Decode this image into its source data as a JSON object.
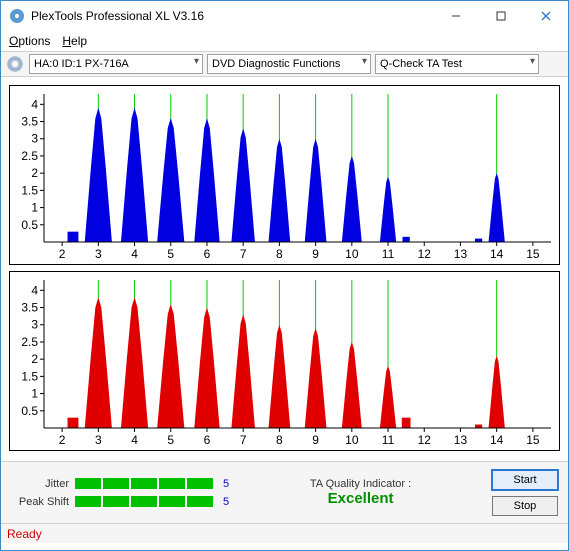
{
  "window": {
    "title": "PlexTools Professional XL V3.16"
  },
  "menu": {
    "options": "Options",
    "help": "Help"
  },
  "toolbar": {
    "drive": "HA:0 ID:1   PX-716A",
    "category": "DVD Diagnostic Functions",
    "test": "Q-Check TA Test"
  },
  "chart": {
    "x_ticks": [
      2,
      3,
      4,
      5,
      6,
      7,
      8,
      9,
      10,
      11,
      12,
      13,
      14,
      15
    ],
    "y_ticks": [
      0.5,
      1,
      1.5,
      2,
      2.5,
      3,
      3.5,
      4
    ],
    "x_min": 1.5,
    "x_max": 15.5,
    "y_min": 0,
    "y_max": 4.3,
    "grid_x": [
      3,
      4,
      5,
      6,
      7,
      8,
      9,
      10,
      11,
      14
    ],
    "grid_color": "#00d000",
    "top": {
      "fill": "#0000e0",
      "peaks": [
        {
          "c": 3,
          "h": 3.9,
          "w": 0.75
        },
        {
          "c": 4,
          "h": 3.9,
          "w": 0.75
        },
        {
          "c": 5,
          "h": 3.6,
          "w": 0.75
        },
        {
          "c": 6,
          "h": 3.6,
          "w": 0.7
        },
        {
          "c": 7,
          "h": 3.3,
          "w": 0.65
        },
        {
          "c": 8,
          "h": 3.0,
          "w": 0.6
        },
        {
          "c": 9,
          "h": 3.0,
          "w": 0.6
        },
        {
          "c": 10,
          "h": 2.5,
          "w": 0.55
        },
        {
          "c": 11,
          "h": 1.9,
          "w": 0.45
        },
        {
          "c": 14,
          "h": 2.0,
          "w": 0.45
        }
      ],
      "stubs": [
        {
          "c": 2.3,
          "h": 0.3,
          "w": 0.15
        },
        {
          "c": 11.5,
          "h": 0.15,
          "w": 0.1
        },
        {
          "c": 13.5,
          "h": 0.1,
          "w": 0.1
        }
      ]
    },
    "bottom": {
      "fill": "#e00000",
      "peaks": [
        {
          "c": 3,
          "h": 3.8,
          "w": 0.75
        },
        {
          "c": 4,
          "h": 3.8,
          "w": 0.75
        },
        {
          "c": 5,
          "h": 3.6,
          "w": 0.75
        },
        {
          "c": 6,
          "h": 3.5,
          "w": 0.7
        },
        {
          "c": 7,
          "h": 3.3,
          "w": 0.65
        },
        {
          "c": 8,
          "h": 3.0,
          "w": 0.6
        },
        {
          "c": 9,
          "h": 2.9,
          "w": 0.6
        },
        {
          "c": 10,
          "h": 2.5,
          "w": 0.55
        },
        {
          "c": 11,
          "h": 1.8,
          "w": 0.45
        },
        {
          "c": 14,
          "h": 2.1,
          "w": 0.45
        }
      ],
      "stubs": [
        {
          "c": 2.3,
          "h": 0.3,
          "w": 0.15
        },
        {
          "c": 11.5,
          "h": 0.3,
          "w": 0.12
        },
        {
          "c": 13.5,
          "h": 0.1,
          "w": 0.1
        }
      ]
    },
    "axis_color": "#000000",
    "tick_font": 11
  },
  "meters": {
    "jitter": {
      "label": "Jitter",
      "segments": 5,
      "value": "5",
      "seg_color": "#00c000",
      "val_color": "#0000cc"
    },
    "peakshift": {
      "label": "Peak Shift",
      "segments": 5,
      "value": "5",
      "seg_color": "#00c000",
      "val_color": "#0000cc"
    }
  },
  "quality": {
    "label": "TA Quality Indicator :",
    "value": "Excellent",
    "value_color": "#009000"
  },
  "buttons": {
    "start": "Start",
    "stop": "Stop"
  },
  "status": {
    "text": "Ready",
    "color": "#cc0000"
  }
}
